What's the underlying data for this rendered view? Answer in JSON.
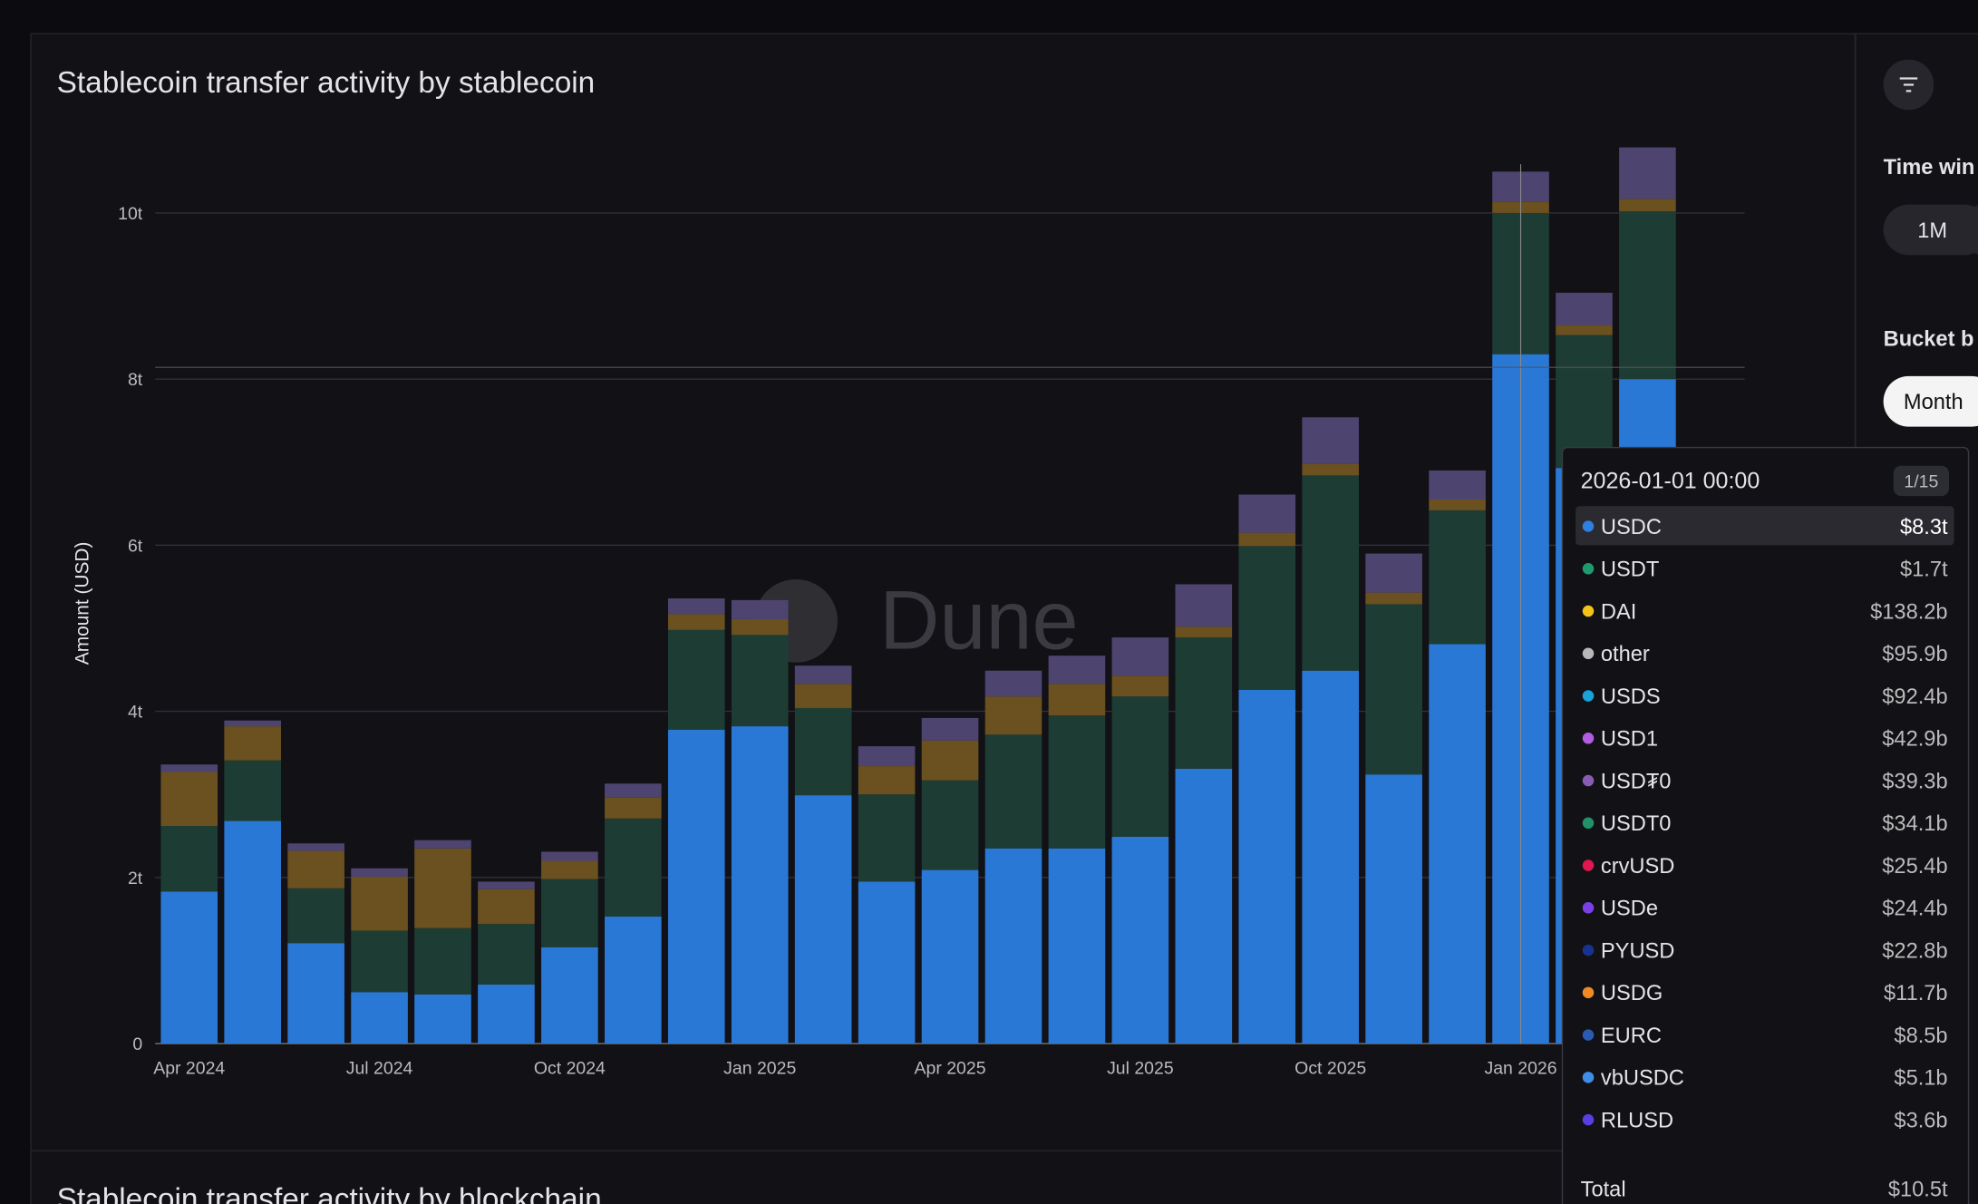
{
  "chart_data": {
    "type": "bar",
    "stacked": true,
    "title": "Stablecoin transfer activity by stablecoin",
    "y_label": "Amount (USD)",
    "watermark": "Dune",
    "categories": [
      "Apr 2024",
      null,
      null,
      "Jul 2024",
      null,
      null,
      "Oct 2024",
      null,
      null,
      "Jan 2025",
      null,
      null,
      "Apr 2025",
      null,
      null,
      "Jul 2025",
      null,
      null,
      "Oct 2025",
      null,
      null,
      "Jan 2026",
      null,
      null
    ],
    "series": [
      {
        "name": "USDC",
        "color": "#2a78d6",
        "values": [
          1.83,
          2.68,
          1.21,
          0.62,
          0.59,
          0.71,
          1.16,
          1.53,
          3.78,
          3.82,
          2.99,
          1.95,
          2.09,
          2.35,
          2.35,
          2.49,
          3.31,
          4.26,
          4.49,
          3.24,
          4.81,
          8.3,
          6.93,
          8.0
        ]
      },
      {
        "name": "USDT",
        "color": "#1d3d34",
        "values": [
          0.79,
          0.73,
          0.66,
          0.74,
          0.8,
          0.73,
          0.82,
          1.18,
          1.2,
          1.1,
          1.05,
          1.05,
          1.08,
          1.37,
          1.6,
          1.69,
          1.58,
          1.73,
          2.35,
          2.05,
          1.61,
          1.7,
          1.6,
          2.02
        ]
      },
      {
        "name": "DAI",
        "color": "#6b5020",
        "values": [
          0.65,
          0.41,
          0.45,
          0.65,
          0.96,
          0.42,
          0.22,
          0.25,
          0.19,
          0.19,
          0.29,
          0.34,
          0.48,
          0.46,
          0.38,
          0.25,
          0.13,
          0.16,
          0.14,
          0.14,
          0.13,
          0.1382,
          0.12,
          0.15
        ]
      },
      {
        "name": "other",
        "color": "#4e4470",
        "values": [
          0.09,
          0.07,
          0.09,
          0.1,
          0.1,
          0.09,
          0.11,
          0.17,
          0.19,
          0.23,
          0.22,
          0.24,
          0.27,
          0.31,
          0.34,
          0.46,
          0.51,
          0.46,
          0.56,
          0.47,
          0.35,
          0.36,
          0.39,
          0.62
        ]
      }
    ],
    "ylim": [
      0,
      10.8
    ],
    "yticks": [
      0,
      {
        "value": 2,
        "label": "2t"
      },
      {
        "value": 4,
        "label": "4t"
      },
      {
        "value": 6,
        "label": "6t"
      },
      {
        "value": 8,
        "label": "8t"
      },
      {
        "value": 10,
        "label": "10t"
      }
    ],
    "grid": true
  },
  "tooltip": {
    "title": "2026-01-01 00:00",
    "page": "1/15",
    "rows": [
      {
        "name": "USDC",
        "color": "#2f7fe0",
        "value": "$8.3t"
      },
      {
        "name": "USDT",
        "color": "#1f9a6e",
        "value": "$1.7t"
      },
      {
        "name": "DAI",
        "color": "#f2c318",
        "value": "$138.2b"
      },
      {
        "name": "other",
        "color": "#b8b8b8",
        "value": "$95.9b"
      },
      {
        "name": "USDS",
        "color": "#1aa3d9",
        "value": "$92.4b"
      },
      {
        "name": "USD1",
        "color": "#b25ce0",
        "value": "$42.9b"
      },
      {
        "name": "USD₮0",
        "color": "#8a5bb5",
        "value": "$39.3b"
      },
      {
        "name": "USDT0",
        "color": "#22916a",
        "value": "$34.1b"
      },
      {
        "name": "crvUSD",
        "color": "#e0184f",
        "value": "$25.4b"
      },
      {
        "name": "USDe",
        "color": "#7b3fe6",
        "value": "$24.4b"
      },
      {
        "name": "PYUSD",
        "color": "#17338f",
        "value": "$22.8b"
      },
      {
        "name": "USDG",
        "color": "#f08a24",
        "value": "$11.7b"
      },
      {
        "name": "EURC",
        "color": "#2b5bb0",
        "value": "$8.5b"
      },
      {
        "name": "vbUSDC",
        "color": "#3f8de6",
        "value": "$5.1b"
      },
      {
        "name": "RLUSD",
        "color": "#5a3ee0",
        "value": "$3.6b"
      }
    ],
    "total_label": "Total",
    "total": "$10.5t"
  },
  "panel": {
    "time_window": "Time win",
    "time_option": "1M",
    "bucket": "Bucket b",
    "bucket_option": "Month"
  },
  "next_chart_title": "Stablecoin transfer activity by blockchain"
}
